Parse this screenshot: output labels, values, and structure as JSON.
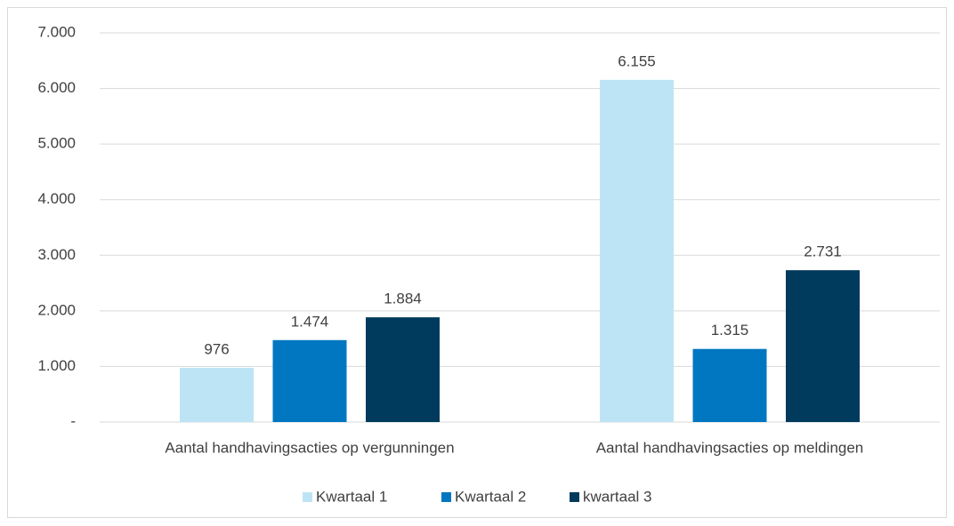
{
  "chart_data": {
    "type": "bar",
    "categories": [
      "Aantal handhavingsacties op vergunningen",
      "Aantal handhavingsacties op meldingen"
    ],
    "series": [
      {
        "name": "Kwartaal 1",
        "color": "#bde4f4",
        "values": [
          976,
          6155
        ],
        "value_labels": [
          "976",
          "6.155"
        ]
      },
      {
        "name": "Kwartaal 2",
        "color": "#0077c0",
        "values": [
          1474,
          1315
        ],
        "value_labels": [
          "1.474",
          "1.315"
        ]
      },
      {
        "name": "kwartaal 3",
        "color": "#003a5c",
        "values": [
          1884,
          2731
        ],
        "value_labels": [
          "1.884",
          "2.731"
        ]
      }
    ],
    "ylim": [
      0,
      7000
    ],
    "yticks": [
      {
        "value": 0,
        "label": "-"
      },
      {
        "value": 1000,
        "label": "1.000"
      },
      {
        "value": 2000,
        "label": "2.000"
      },
      {
        "value": 3000,
        "label": "3.000"
      },
      {
        "value": 4000,
        "label": "4.000"
      },
      {
        "value": 5000,
        "label": "5.000"
      },
      {
        "value": 6000,
        "label": "6.000"
      },
      {
        "value": 7000,
        "label": "7.000"
      }
    ],
    "grid": true,
    "legend": "bottom"
  }
}
